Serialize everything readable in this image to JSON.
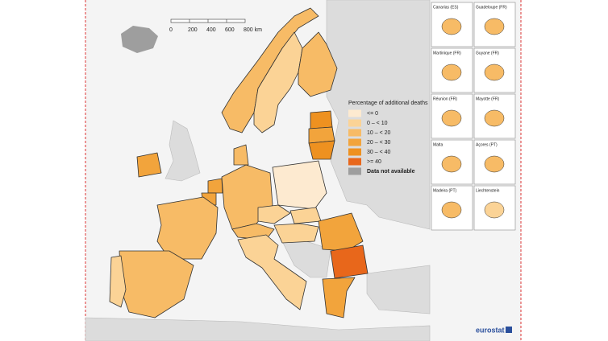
{
  "scale_bar": {
    "labels": [
      "0",
      "200",
      "400",
      "600",
      "800 km"
    ]
  },
  "legend": {
    "title": "Percentage of additional deaths",
    "items": [
      {
        "label": "<= 0",
        "color": "#fdead0"
      },
      {
        "label": "0 – < 10",
        "color": "#fbd396"
      },
      {
        "label": "10 – < 20",
        "color": "#f7bb66"
      },
      {
        "label": "20 – < 30",
        "color": "#f2a43c"
      },
      {
        "label": "30 – < 40",
        "color": "#ee9120"
      },
      {
        "label": ">= 40",
        "color": "#e8671b"
      },
      {
        "label": "Data not available",
        "color": "#9e9e9e"
      }
    ]
  },
  "insets": [
    "Canarias (ES)",
    "Guadeloupe (FR)",
    "Martinique (FR)",
    "Guyane (FR)",
    "Réunion (FR)",
    "Mayotte (FR)",
    "Malta",
    "Açores (PT)",
    "Madeira (PT)",
    "Liechtenstein"
  ],
  "logo": "eurostat"
}
